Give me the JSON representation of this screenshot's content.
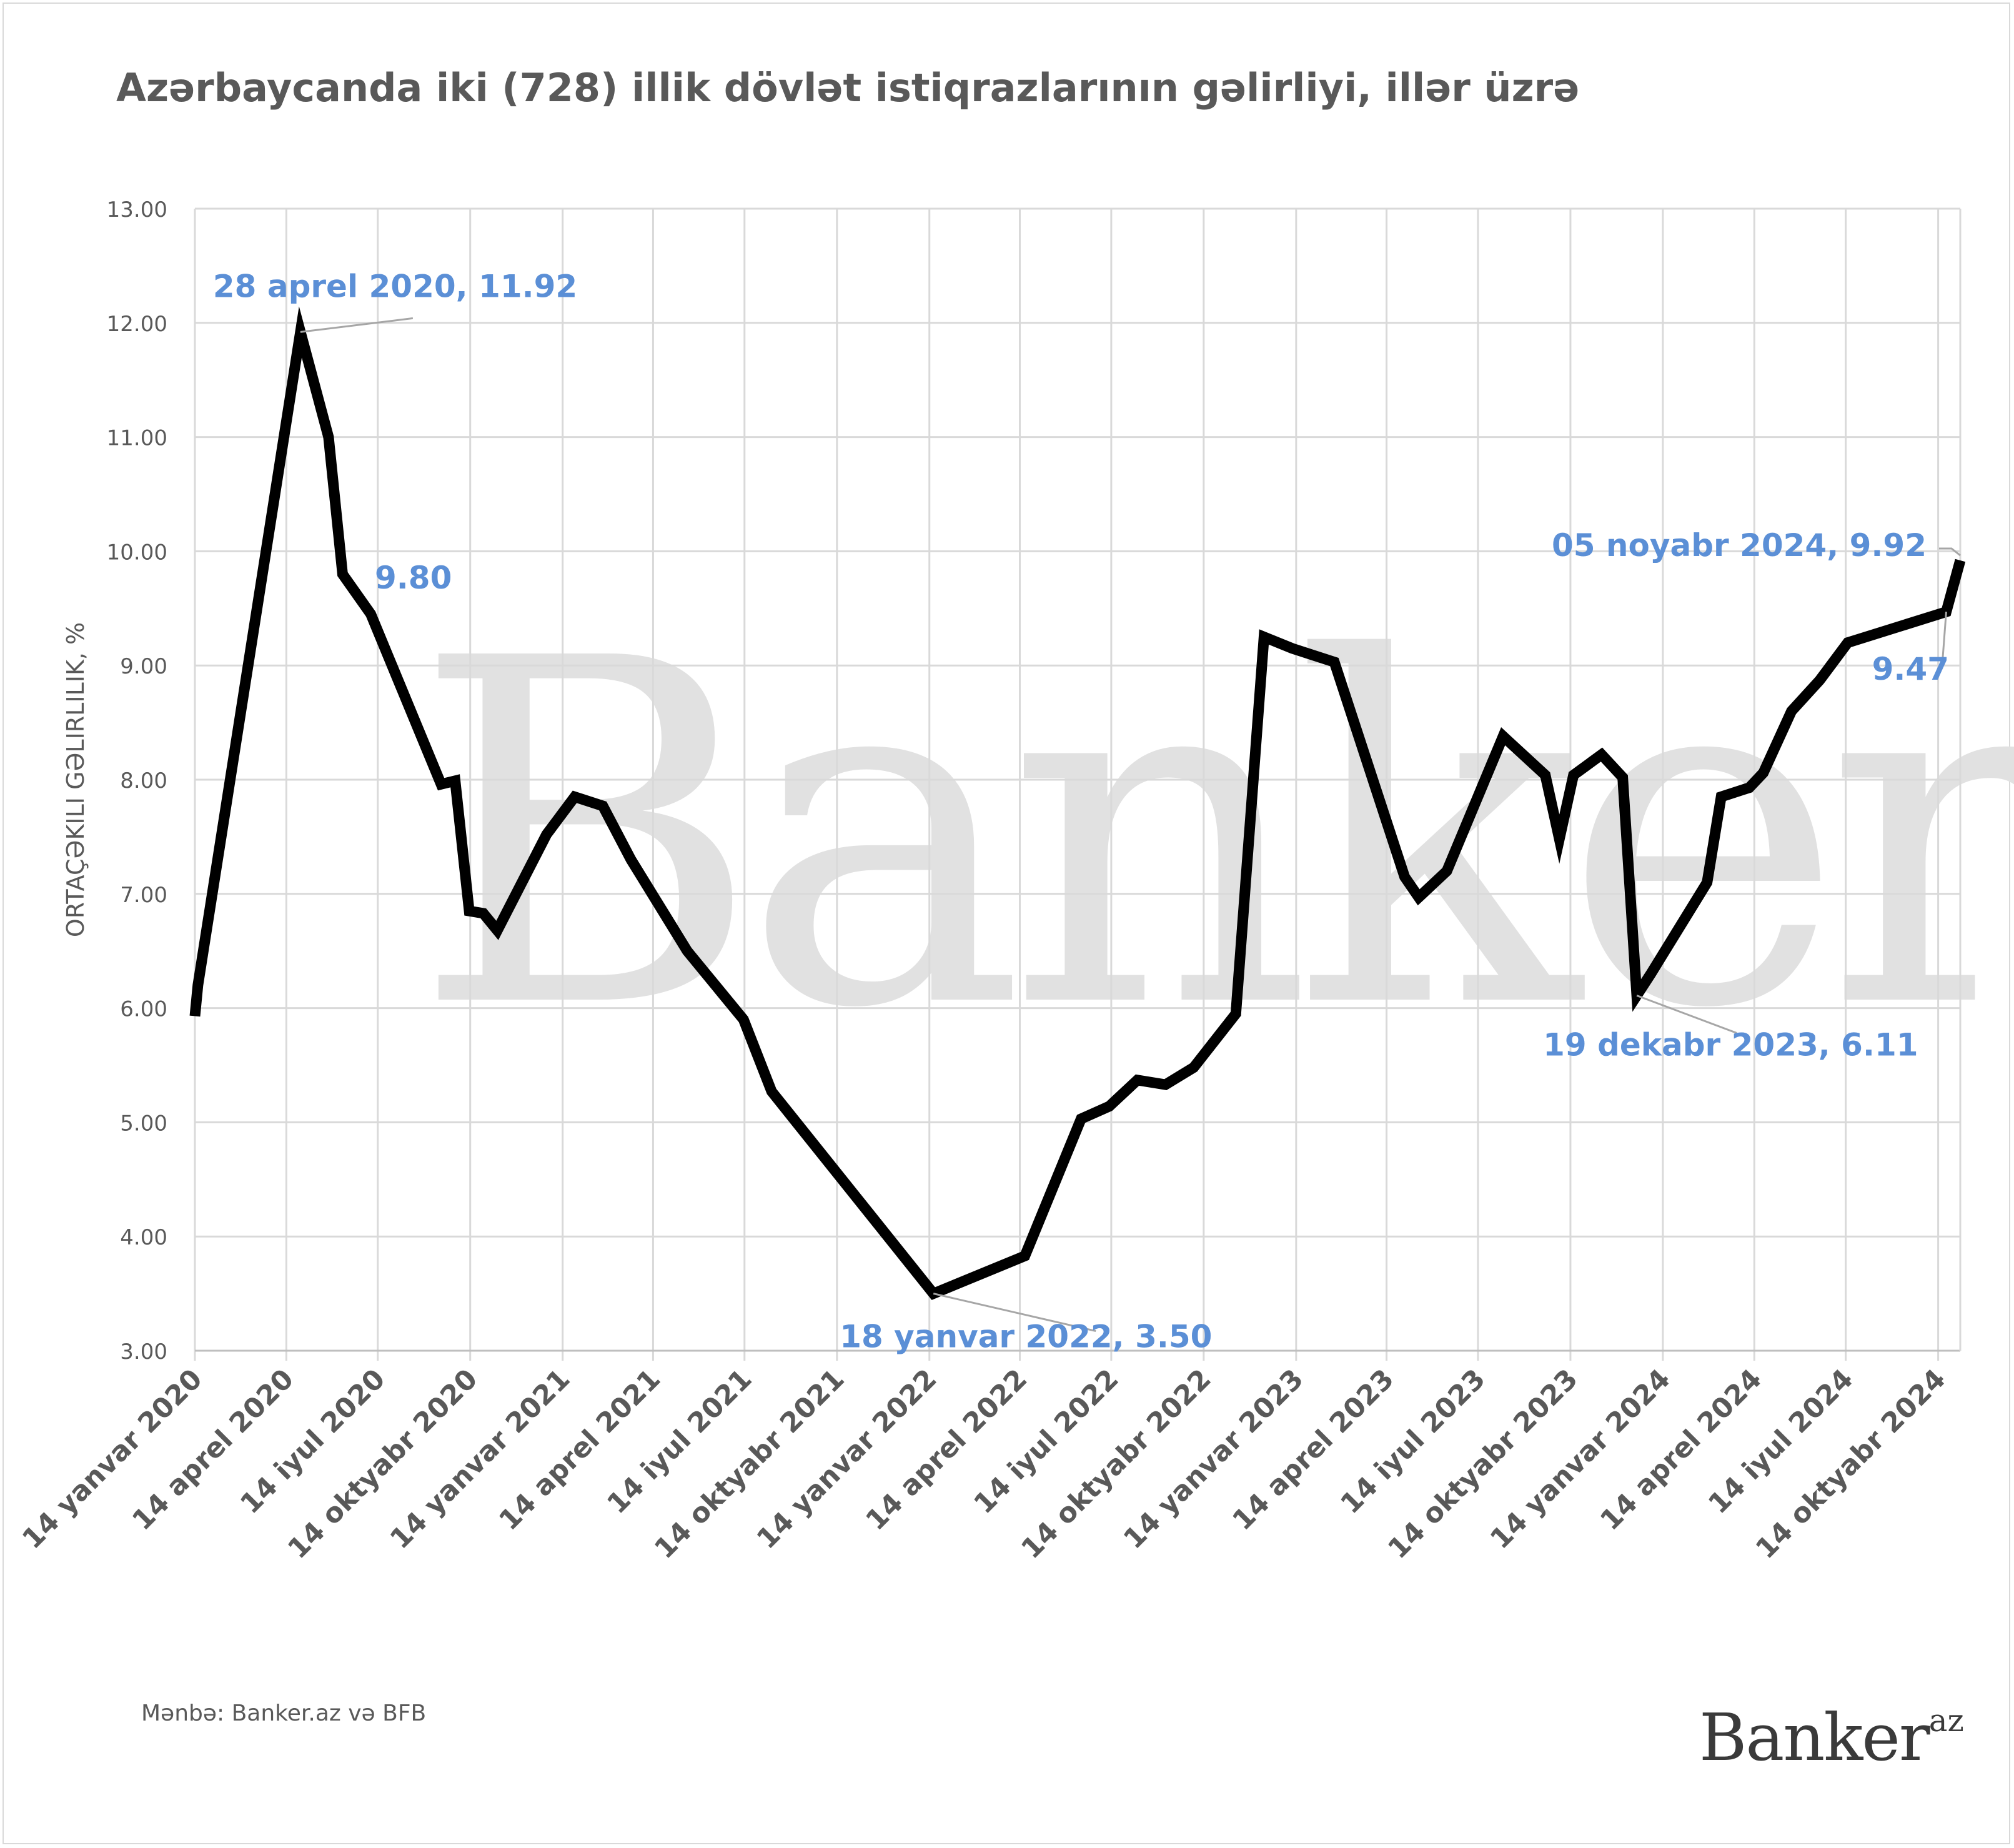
{
  "chart_data": {
    "type": "line",
    "title": "Azərbaycanda iki (728) illik dövlət istiqrazlarının gəlirliyi, illər üzrə",
    "ylabel": "ORTAÇƏKILI GƏLIRLILIK, %",
    "xlabel": "",
    "ylim": [
      3.0,
      13.0
    ],
    "yticks": [
      "3.00",
      "4.00",
      "5.00",
      "6.00",
      "7.00",
      "8.00",
      "9.00",
      "10.00",
      "11.00",
      "12.00",
      "13.00"
    ],
    "xticks": [
      "14 yanvar 2020",
      "14 aprel 2020",
      "14 iyul 2020",
      "14 oktyabr 2020",
      "14 yanvar 2021",
      "14 aprel 2021",
      "14 iyul 2021",
      "14 oktyabr 2021",
      "14 yanvar 2022",
      "14 aprel 2022",
      "14 iyul 2022",
      "14 oktyabr 2022",
      "14 yanvar 2023",
      "14 aprel 2023",
      "14 iyul 2023",
      "14 oktyabr 2023",
      "14 yanvar 2024",
      "14 aprel 2024",
      "14 iyul 2024",
      "14 oktyabr 2024"
    ],
    "grid": true,
    "series": [
      {
        "color": "#000000",
        "points": [
          [
            "2020-01-14",
            5.93
          ],
          [
            "2020-01-17",
            6.2
          ],
          [
            "2020-04-28",
            11.92
          ],
          [
            "2020-05-26",
            11.0
          ],
          [
            "2020-06-09",
            9.8
          ],
          [
            "2020-07-07",
            9.45
          ],
          [
            "2020-09-15",
            7.96
          ],
          [
            "2020-09-29",
            7.99
          ],
          [
            "2020-10-13",
            6.85
          ],
          [
            "2020-10-27",
            6.83
          ],
          [
            "2020-11-10",
            6.68
          ],
          [
            "2020-12-29",
            7.52
          ],
          [
            "2021-01-26",
            7.85
          ],
          [
            "2021-02-23",
            7.77
          ],
          [
            "2021-03-23",
            7.3
          ],
          [
            "2021-04-20",
            6.9
          ],
          [
            "2021-05-18",
            6.5
          ],
          [
            "2021-07-13",
            5.9
          ],
          [
            "2021-08-10",
            5.27
          ],
          [
            "2022-01-18",
            3.5
          ],
          [
            "2022-04-19",
            3.83
          ],
          [
            "2022-06-14",
            5.03
          ],
          [
            "2022-07-12",
            5.14
          ],
          [
            "2022-08-09",
            5.37
          ],
          [
            "2022-09-06",
            5.33
          ],
          [
            "2022-10-04",
            5.48
          ],
          [
            "2022-11-15",
            5.95
          ],
          [
            "2022-12-13",
            9.25
          ],
          [
            "2023-01-10",
            9.15
          ],
          [
            "2023-02-21",
            9.03
          ],
          [
            "2023-05-02",
            7.15
          ],
          [
            "2023-05-16",
            6.97
          ],
          [
            "2023-06-13",
            7.2
          ],
          [
            "2023-08-08",
            8.38
          ],
          [
            "2023-09-19",
            8.04
          ],
          [
            "2023-10-03",
            7.48
          ],
          [
            "2023-10-17",
            8.04
          ],
          [
            "2023-11-14",
            8.22
          ],
          [
            "2023-12-05",
            8.02
          ],
          [
            "2023-12-19",
            6.11
          ],
          [
            "2024-01-02",
            6.3
          ],
          [
            "2024-02-27",
            7.1
          ],
          [
            "2024-03-12",
            7.85
          ],
          [
            "2024-04-09",
            7.93
          ],
          [
            "2024-04-23",
            8.06
          ],
          [
            "2024-05-21",
            8.6
          ],
          [
            "2024-06-18",
            8.87
          ],
          [
            "2024-07-16",
            9.2
          ],
          [
            "2024-10-22",
            9.47
          ],
          [
            "2024-11-05",
            9.92
          ]
        ]
      }
    ],
    "annotations": [
      {
        "x": "2020-04-28",
        "y": 11.92,
        "text": "28 aprel 2020,  11.92"
      },
      {
        "x": "2020-06-09",
        "y": 9.8,
        "text": "9.80"
      },
      {
        "x": "2022-01-18",
        "y": 3.5,
        "text": "18 yanvar 2022,  3.50"
      },
      {
        "x": "2023-12-19",
        "y": 6.11,
        "text": "19 dekabr 2023,  6.11"
      },
      {
        "x": "2024-10-22",
        "y": 9.47,
        "text": "9.47"
      },
      {
        "x": "2024-11-05",
        "y": 9.92,
        "text": "05 noyabr 2024,  9.92"
      }
    ],
    "colors": {
      "line": "#000000",
      "annotation": "#5b8fd6",
      "grid": "#d9d9d9",
      "axis_text": "#595959",
      "watermark": "#e1e1e1"
    }
  },
  "watermark": {
    "main": "Banker",
    "sup": "az"
  },
  "source": "Mənbə: Banker.az və BFB",
  "brand": {
    "main": "Banker",
    "sup": "az"
  }
}
